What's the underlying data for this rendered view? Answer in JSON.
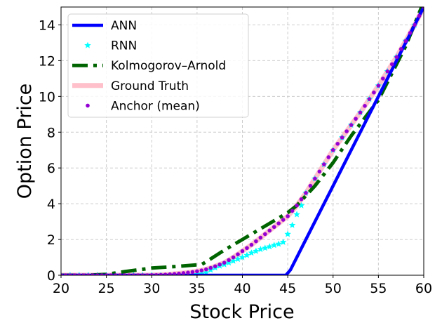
{
  "chart_data": {
    "type": "line",
    "title": "",
    "xlabel": "Stock Price",
    "ylabel": "Option Price",
    "xlim": [
      20,
      60
    ],
    "ylim": [
      0,
      15
    ],
    "xticks": [
      20,
      25,
      30,
      35,
      40,
      45,
      50,
      55,
      60
    ],
    "yticks": [
      0,
      2,
      4,
      6,
      8,
      10,
      12,
      14
    ],
    "grid": true,
    "legend_position": "top-left",
    "series": [
      {
        "name": "ANN",
        "style": "solid",
        "color": "#0000ff",
        "x": [
          20,
          44.8,
          45.3,
          60
        ],
        "y": [
          0,
          0,
          0.3,
          15
        ]
      },
      {
        "name": "RNN",
        "style": "star-markers",
        "color": "#00ffff",
        "x": [
          20,
          21,
          22,
          23,
          24,
          25,
          26,
          27,
          28,
          29,
          30,
          31,
          32,
          33,
          34,
          35,
          35.5,
          36,
          36.5,
          37,
          37.5,
          38,
          38.5,
          39,
          39.5,
          40,
          40.5,
          41,
          41.5,
          42,
          42.5,
          43,
          43.5,
          44,
          44.5,
          45,
          45.5,
          46,
          46.5,
          47,
          48,
          49,
          50,
          51,
          52,
          53,
          54,
          55,
          56,
          57,
          58,
          59,
          60
        ],
        "y": [
          0,
          0,
          0,
          0,
          0,
          0,
          0,
          0,
          0,
          0,
          0,
          0,
          0,
          0,
          0.02,
          0.05,
          0.08,
          0.15,
          0.3,
          0.42,
          0.52,
          0.6,
          0.7,
          0.8,
          0.9,
          1.0,
          1.12,
          1.25,
          1.35,
          1.45,
          1.52,
          1.6,
          1.68,
          1.75,
          1.85,
          2.3,
          2.8,
          3.4,
          3.9,
          4.6,
          5.4,
          6.2,
          7.0,
          7.7,
          8.4,
          9.1,
          9.85,
          10.6,
          11.4,
          12.2,
          13.1,
          14.0,
          15.0
        ]
      },
      {
        "name": "Kolmogorov–Arnold",
        "style": "dashdot",
        "color": "#006400",
        "x": [
          20,
          23,
          25,
          27,
          30,
          33,
          35.5,
          36,
          38,
          40,
          42,
          44,
          45,
          46,
          48,
          50,
          52,
          55,
          58,
          60
        ],
        "y": [
          0,
          0,
          0.05,
          0.2,
          0.4,
          0.5,
          0.6,
          0.75,
          1.4,
          2.0,
          2.6,
          3.2,
          3.5,
          3.9,
          5.0,
          6.3,
          7.8,
          9.8,
          12.8,
          15.3
        ]
      },
      {
        "name": "Ground Truth",
        "style": "thick-solid",
        "color": "#ffc0cb",
        "x": [
          20,
          25,
          30,
          32,
          34,
          35,
          36,
          37,
          38,
          39,
          40,
          41,
          42,
          43,
          44,
          45,
          46,
          47,
          48,
          49,
          50,
          51,
          52,
          53,
          54,
          55,
          56,
          57,
          58,
          59,
          60
        ],
        "y": [
          0,
          0,
          0.01,
          0.05,
          0.15,
          0.22,
          0.33,
          0.5,
          0.7,
          1.0,
          1.35,
          1.7,
          2.1,
          2.5,
          2.9,
          3.3,
          3.9,
          4.6,
          5.4,
          6.2,
          7.0,
          7.7,
          8.4,
          9.1,
          9.85,
          10.6,
          11.4,
          12.2,
          13.1,
          14.0,
          15.0
        ]
      },
      {
        "name": "Anchor (mean)",
        "style": "dot-markers",
        "color": "#9400d3",
        "x": [
          20,
          20.5,
          21,
          21.5,
          22,
          22.5,
          23,
          23.5,
          24,
          24.5,
          25,
          25.5,
          26,
          26.5,
          27,
          27.5,
          28,
          28.5,
          29,
          29.5,
          30,
          30.5,
          31,
          31.5,
          32,
          32.5,
          33,
          33.5,
          34,
          34.5,
          35,
          35.5,
          36,
          36.5,
          37,
          37.5,
          38,
          38.5,
          39,
          39.5,
          40,
          40.5,
          41,
          41.5,
          42,
          42.5,
          43,
          43.5,
          44,
          44.5,
          45,
          45.5,
          46,
          46.5,
          47,
          47.5,
          48,
          48.5,
          49,
          49.5,
          50,
          50.5,
          51,
          51.5,
          52,
          52.5,
          53,
          53.5,
          54,
          54.5,
          55,
          55.5,
          56,
          56.5,
          57,
          57.5,
          58,
          58.5,
          59,
          59.5,
          60
        ],
        "y": [
          0,
          0,
          0,
          0,
          0,
          0,
          0,
          0,
          0,
          0,
          0,
          0,
          0,
          0,
          0,
          0,
          0,
          0,
          0,
          0,
          0.01,
          0.01,
          0.02,
          0.03,
          0.05,
          0.07,
          0.09,
          0.12,
          0.15,
          0.18,
          0.22,
          0.27,
          0.33,
          0.41,
          0.5,
          0.6,
          0.7,
          0.85,
          1.0,
          1.17,
          1.35,
          1.52,
          1.7,
          1.9,
          2.1,
          2.3,
          2.5,
          2.7,
          2.9,
          3.1,
          3.3,
          3.6,
          3.9,
          4.25,
          4.6,
          5.0,
          5.4,
          5.8,
          6.2,
          6.6,
          7.0,
          7.35,
          7.7,
          8.05,
          8.4,
          8.75,
          9.1,
          9.47,
          9.85,
          10.22,
          10.6,
          11.0,
          11.4,
          11.8,
          12.2,
          12.65,
          13.1,
          13.55,
          14.0,
          14.5,
          15.0
        ]
      }
    ]
  }
}
